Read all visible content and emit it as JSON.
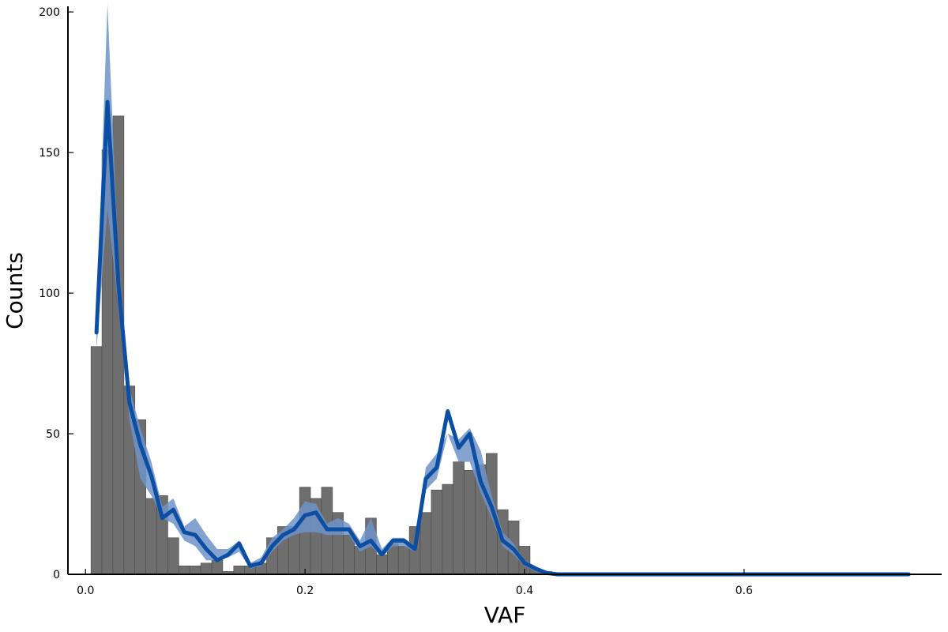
{
  "chart_data": {
    "type": "bar",
    "title": "",
    "xlabel": "VAF",
    "ylabel": "Counts",
    "xlim": [
      -0.016,
      0.78
    ],
    "ylim": [
      0,
      202
    ],
    "grid": false,
    "legend": "none",
    "xticks": [
      0.0,
      0.2,
      0.4,
      0.6
    ],
    "xtick_labels": [
      "0.0",
      "0.2",
      "0.4",
      "0.6"
    ],
    "yticks": [
      0,
      50,
      100,
      150,
      200
    ],
    "ytick_labels": [
      "0",
      "50",
      "100",
      "150",
      "200"
    ],
    "colors": {
      "histogram": "#6e6e6e",
      "line": "#0b4ea2",
      "band": "#6f93c9"
    },
    "histogram": {
      "bin_width": 0.01,
      "bin_starts": [
        0.005,
        0.015,
        0.025,
        0.035,
        0.045,
        0.055,
        0.065,
        0.075,
        0.085,
        0.095,
        0.105,
        0.115,
        0.125,
        0.135,
        0.145,
        0.155,
        0.165,
        0.175,
        0.185,
        0.195,
        0.205,
        0.215,
        0.225,
        0.235,
        0.245,
        0.255,
        0.265,
        0.275,
        0.285,
        0.295,
        0.305,
        0.315,
        0.325,
        0.335,
        0.345,
        0.355,
        0.365,
        0.375,
        0.385,
        0.395,
        0.405,
        0.415
      ],
      "counts": [
        81,
        151,
        163,
        67,
        55,
        27,
        28,
        13,
        3,
        3,
        4,
        5,
        1,
        3,
        3,
        4,
        13,
        17,
        17,
        31,
        27,
        31,
        22,
        14,
        10,
        20,
        7,
        11,
        10,
        17,
        22,
        30,
        32,
        40,
        37,
        39,
        43,
        23,
        19,
        10,
        2,
        1
      ]
    },
    "series": [
      {
        "x": [
          0.01,
          0.02,
          0.03,
          0.04,
          0.05,
          0.06,
          0.07,
          0.08,
          0.09,
          0.1,
          0.11,
          0.12,
          0.13,
          0.14,
          0.15,
          0.16,
          0.17,
          0.18,
          0.19,
          0.2,
          0.21,
          0.22,
          0.23,
          0.24,
          0.25,
          0.26,
          0.27,
          0.28,
          0.29,
          0.3,
          0.31,
          0.32,
          0.33,
          0.34,
          0.35,
          0.36,
          0.37,
          0.38,
          0.39,
          0.4,
          0.41,
          0.42,
          0.43,
          0.44,
          0.5,
          0.6,
          0.7,
          0.75
        ],
        "y": [
          86,
          168,
          103,
          61,
          46,
          35,
          20,
          23,
          15,
          14,
          9,
          5,
          7,
          11,
          3,
          4,
          10,
          14,
          16,
          21,
          22,
          16,
          16,
          16,
          10,
          12,
          7,
          12,
          12,
          9,
          34,
          38,
          58,
          45,
          50,
          33,
          24,
          12,
          9,
          4,
          2,
          0.5,
          0,
          0,
          0,
          0,
          0,
          0
        ],
        "band_lower": [
          80,
          130,
          95,
          55,
          34,
          28,
          20,
          18,
          12,
          10,
          5,
          5,
          6,
          8,
          2,
          3,
          8,
          12,
          14,
          15,
          15,
          14,
          14,
          14,
          8,
          10,
          6,
          10,
          10,
          8,
          30,
          34,
          50,
          40,
          40,
          29,
          20,
          10,
          7,
          3,
          1,
          0,
          0,
          0,
          0,
          0,
          0,
          0
        ],
        "band_upper": [
          90,
          203,
          112,
          66,
          52,
          40,
          24,
          27,
          17,
          20,
          14,
          9,
          9,
          12,
          4,
          6,
          13,
          16,
          20,
          26,
          25,
          18,
          20,
          18,
          12,
          20,
          9,
          13,
          13,
          10,
          38,
          43,
          50,
          48,
          52,
          44,
          28,
          15,
          11,
          5,
          3,
          1,
          0,
          0,
          0,
          0,
          0,
          0
        ]
      }
    ]
  }
}
